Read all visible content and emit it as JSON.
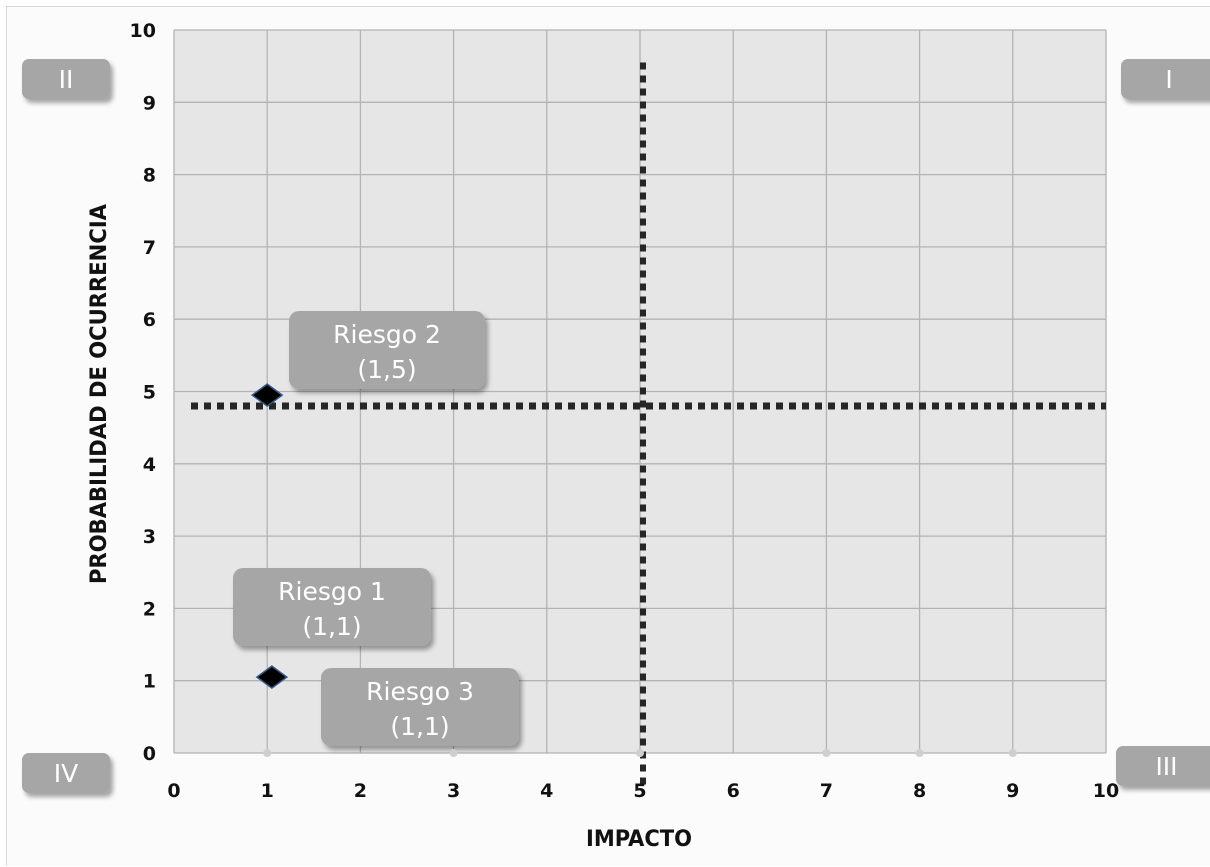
{
  "chart_data": {
    "type": "scatter",
    "xlabel": "IMPACTO",
    "ylabel": "PROBABILIDAD DE OCURRENCIA",
    "xlim": [
      0,
      10
    ],
    "ylim": [
      0,
      10
    ],
    "x_ticks": [
      "0",
      "1",
      "2",
      "3",
      "4",
      "5",
      "6",
      "7",
      "8",
      "9",
      "10"
    ],
    "y_ticks": [
      "0",
      "1",
      "2",
      "3",
      "4",
      "5",
      "6",
      "7",
      "8",
      "9",
      "10"
    ],
    "grid": true,
    "threshold_x": 5,
    "threshold_y": 4.8,
    "points": [
      {
        "x": 1,
        "y": 4.95
      },
      {
        "x": 1.05,
        "y": 1.05
      }
    ],
    "annotations": [
      {
        "line1": "Riesgo 2",
        "line2": "(1,5)"
      },
      {
        "line1": "Riesgo 1",
        "line2": "(1,1)"
      },
      {
        "line1": "Riesgo 3",
        "line2": "(1,1)"
      }
    ],
    "quadrants": {
      "top_left": "II",
      "top_right": "I",
      "bottom_left": "IV",
      "bottom_right": "III"
    },
    "colors": {
      "plot_bg": "#e6e6e6",
      "grid": "#b3b3b3",
      "callout": "#a6a6a6",
      "marker": "#000000",
      "threshold": "#262626"
    }
  }
}
